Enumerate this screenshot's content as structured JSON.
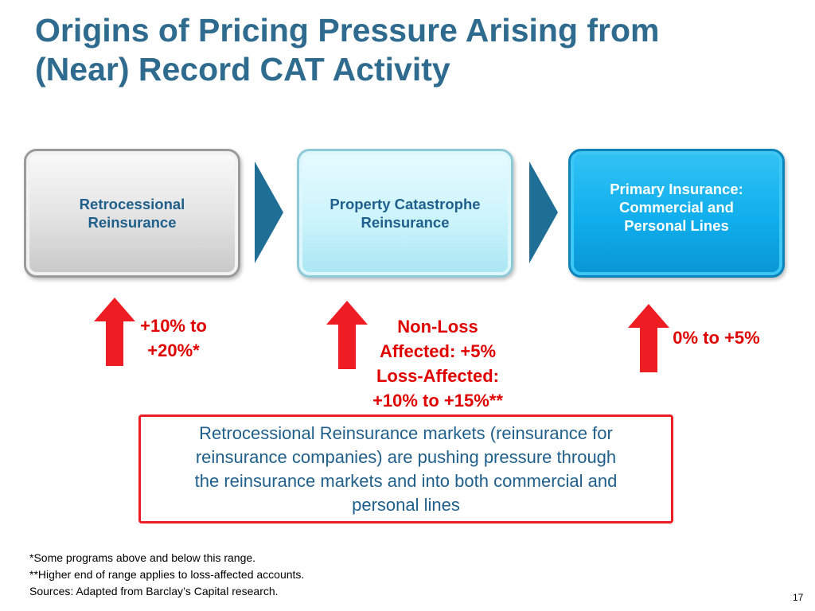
{
  "title": {
    "lines": [
      "Origins of Pricing Pressure Arising from",
      "(Near) Record CAT Activity"
    ]
  },
  "boxes": [
    {
      "lines": [
        "Retrocessional",
        "Reinsurance"
      ],
      "fill": "#e2e2e2",
      "text_color": "#1f5f8b"
    },
    {
      "lines": [
        "Property Catastrophe",
        "Reinsurance"
      ],
      "fill": "#c9f3fb",
      "text_color": "#1f5f8b"
    },
    {
      "lines": [
        "Primary Insurance:",
        "Commercial and",
        "Personal Lines"
      ],
      "fill": "#10aeec",
      "text_color": "#ffffff"
    }
  ],
  "chevron_color": "#1f6e96",
  "arrow_color": "#ee1d23",
  "changes": [
    {
      "lines": [
        "+10% to",
        "+20%*"
      ]
    },
    {
      "lines": [
        "Non-Loss",
        "Affected: +5%",
        "Loss-Affected:",
        "+10% to +15%**"
      ]
    },
    {
      "lines": [
        "0% to +5%"
      ]
    }
  ],
  "callout": {
    "lines": [
      "Retrocessional Reinsurance markets (reinsurance for",
      "reinsurance companies) are pushing pressure through",
      "the reinsurance markets and into both commercial and",
      "personal lines"
    ],
    "border_color": "#ee1d23"
  },
  "footnotes": [
    "*Some programs above and below this range.",
    "**Higher end of range applies to loss-affected accounts.",
    "Sources: Adapted from Barclay’s Capital research."
  ],
  "page_number": "17"
}
